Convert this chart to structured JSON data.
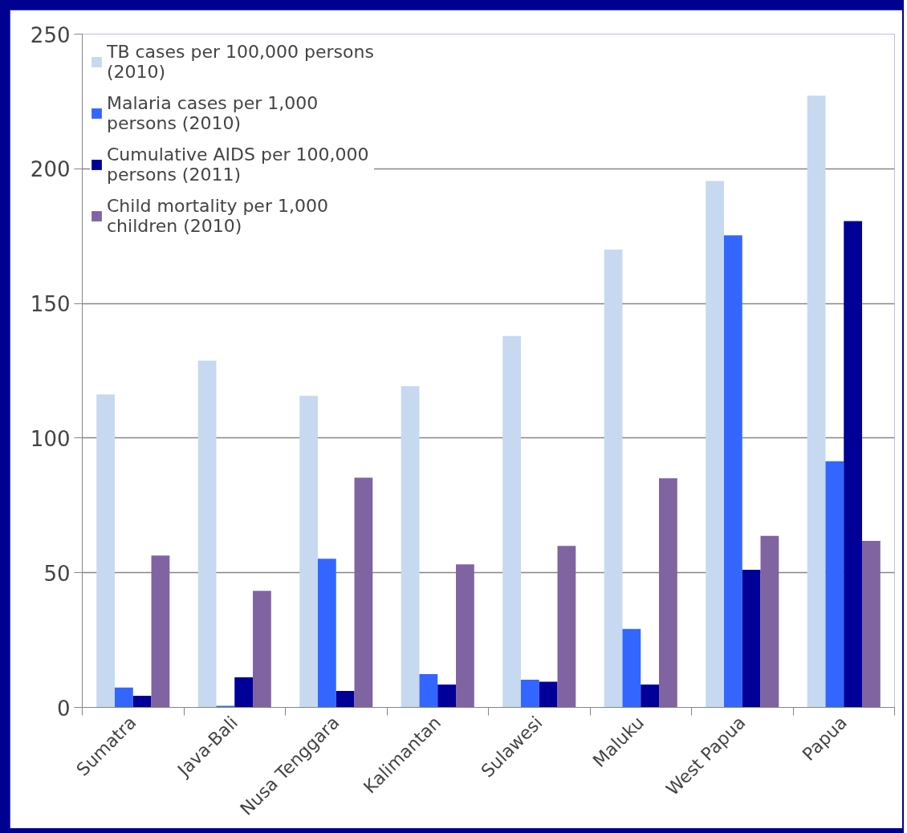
{
  "chart_data": {
    "type": "bar",
    "categories": [
      "Sumatra",
      "Java-Bali",
      "Nusa Tenggara",
      "Kalimantan",
      "Sulawesi",
      "Maluku",
      "West Papua",
      "Papua"
    ],
    "series": [
      {
        "name": "TB cases per 100,000 persons (2010)",
        "color": "#c6d9f0",
        "values": [
          116.2,
          128.7,
          115.7,
          119.3,
          137.9,
          170.0,
          195.5,
          227.1
        ]
      },
      {
        "name": "Malaria cases per 1,000 persons (2010)",
        "color": "#3366ff",
        "values": [
          7.4,
          0.6,
          55.2,
          12.4,
          10.3,
          29.1,
          175.3,
          91.4
        ]
      },
      {
        "name": "Cumulative AIDS per 100,000 persons (2011)",
        "color": "#000099",
        "values": [
          4.3,
          11.2,
          6.1,
          8.5,
          9.5,
          8.5,
          51.1,
          180.6
        ]
      },
      {
        "name": "Child mortality per 1,000 children (2010)",
        "color": "#8064a2",
        "values": [
          56.4,
          43.3,
          85.3,
          53.1,
          60.0,
          85.1,
          63.7,
          61.8
        ]
      }
    ],
    "ylim": [
      0,
      250
    ],
    "yticks": [
      0,
      50,
      100,
      150,
      200,
      250
    ],
    "grid": "y",
    "legend": "top left"
  }
}
